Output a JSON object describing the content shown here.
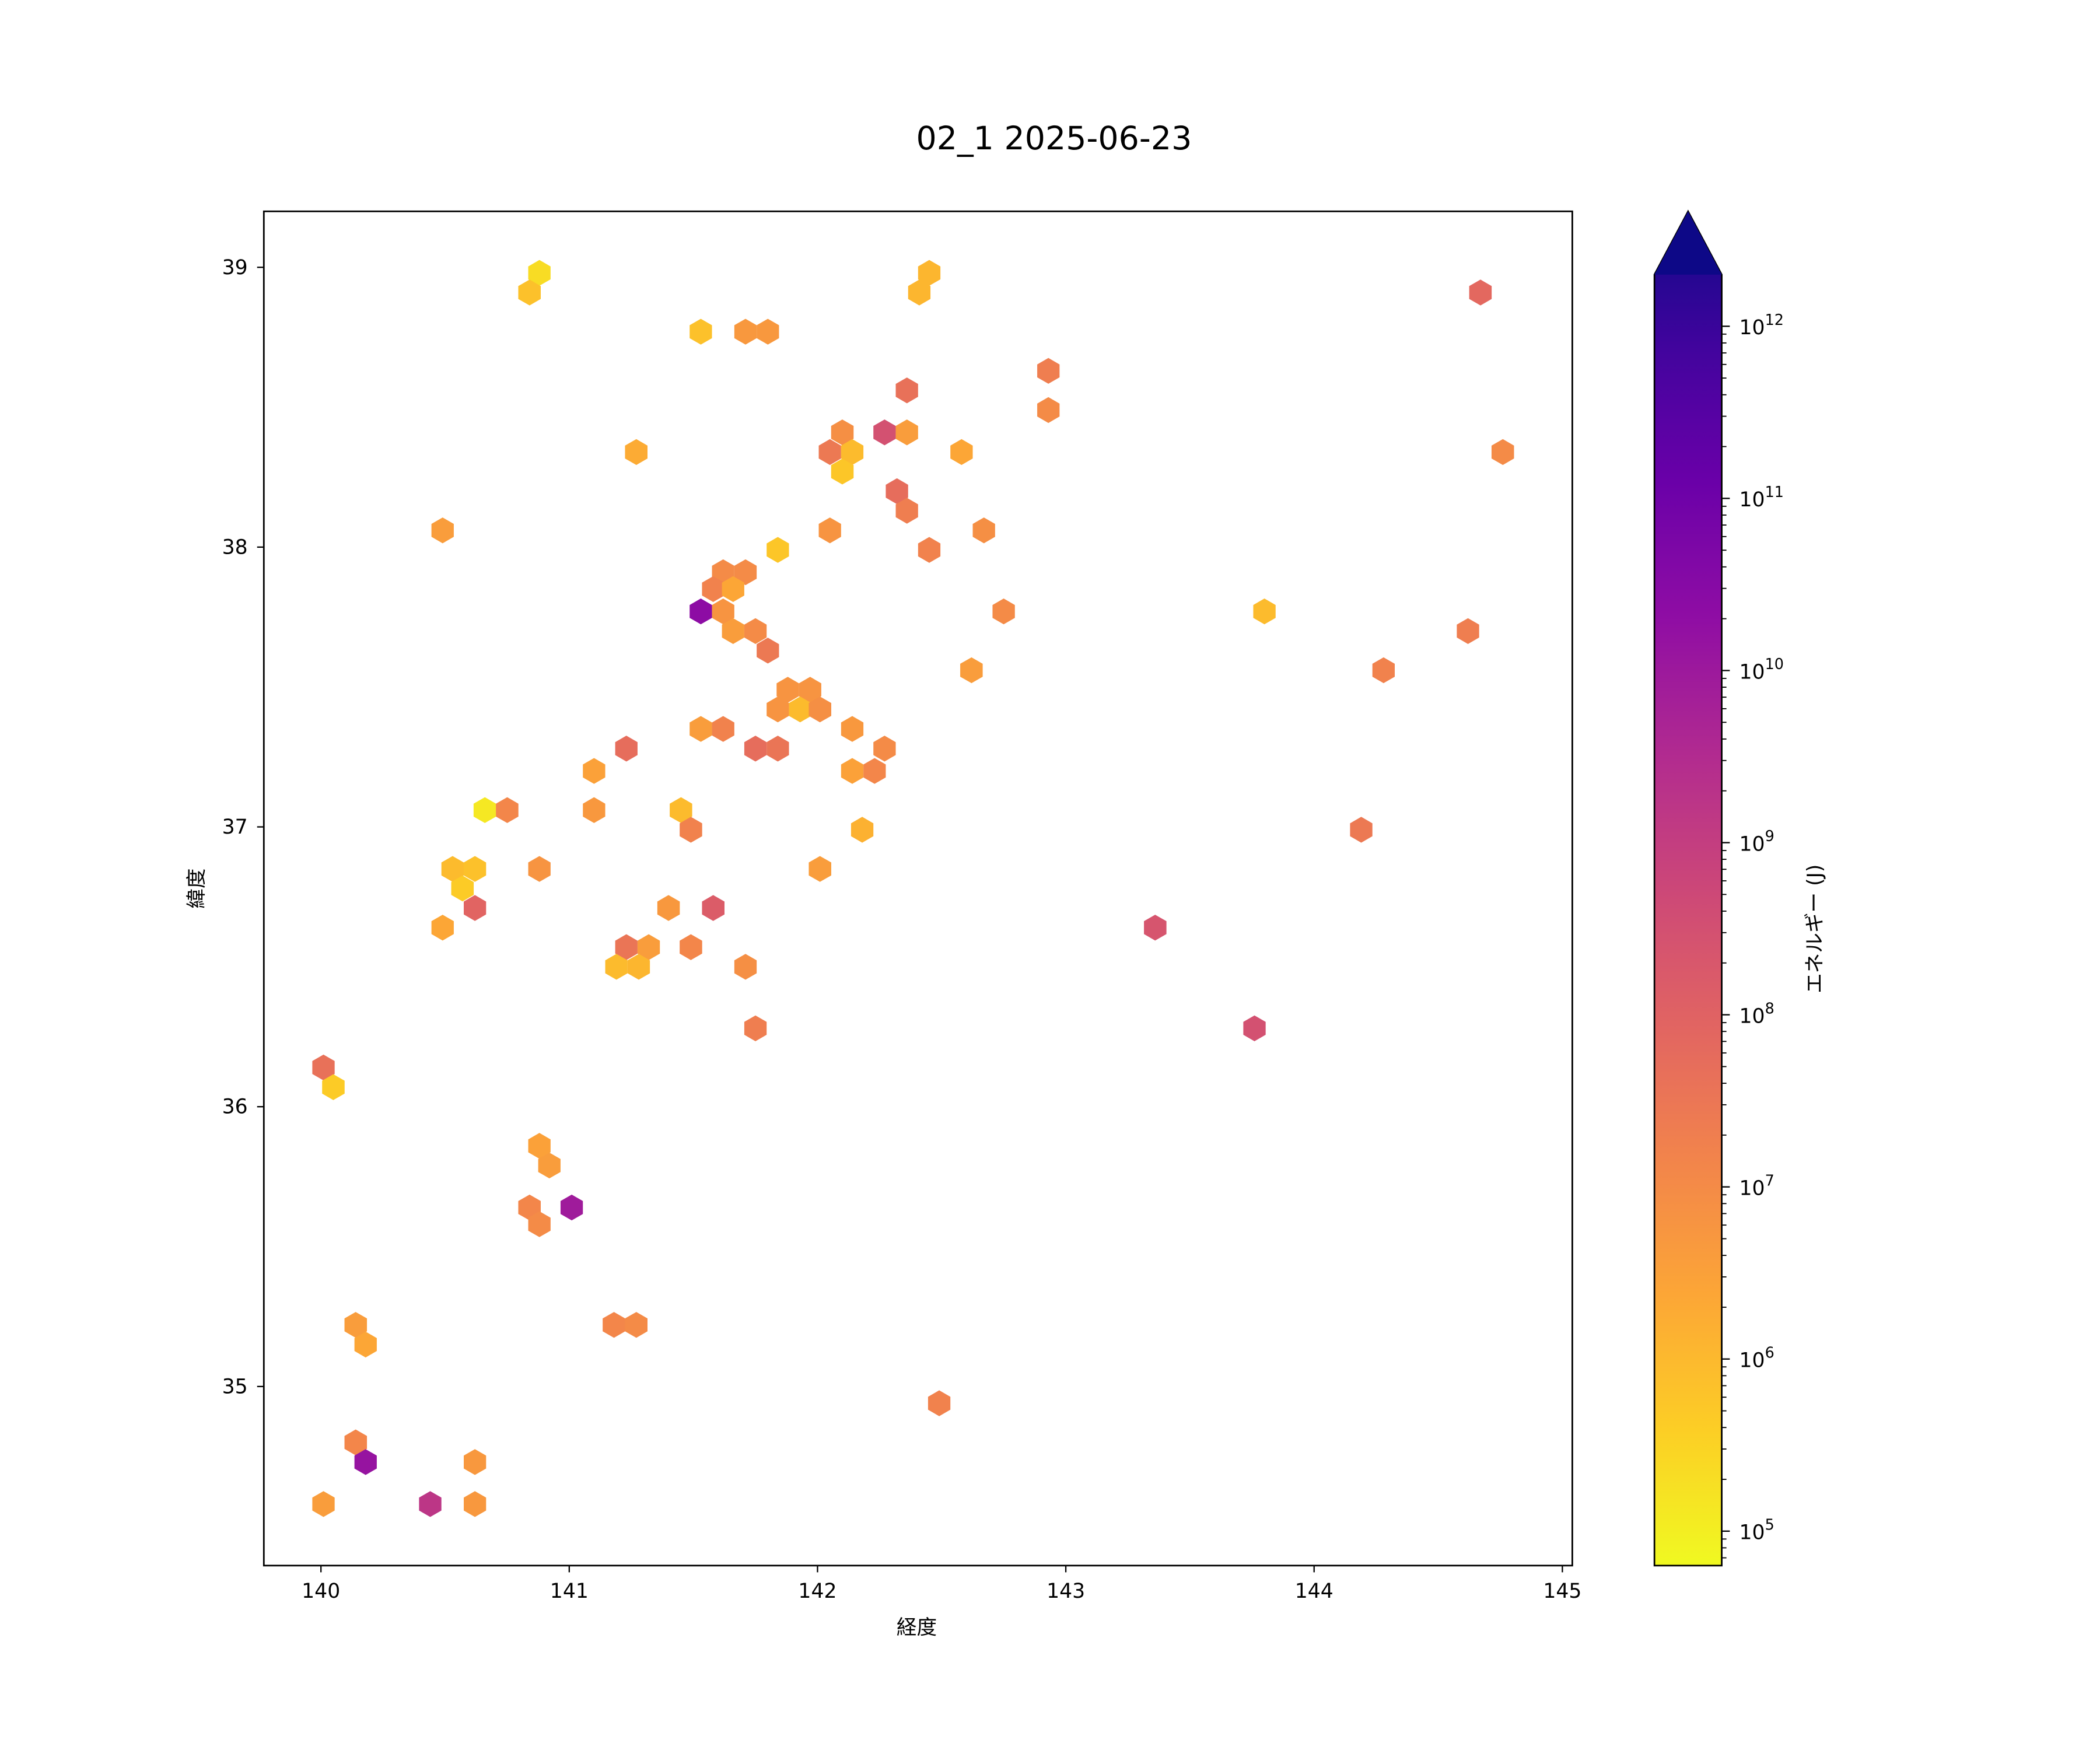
{
  "chart_data": {
    "type": "hexbin",
    "title": "02_1 2025-06-23",
    "xlabel": "経度",
    "ylabel": "緯度",
    "xlim": [
      139.77,
      145.04
    ],
    "ylim": [
      34.36,
      39.2
    ],
    "xticks": [
      140,
      141,
      142,
      143,
      144,
      145
    ],
    "yticks": [
      35,
      36,
      37,
      38,
      39
    ],
    "grid": false,
    "colorbar": {
      "label": "エネルギー (J)",
      "scale": "log",
      "colormap": "plasma",
      "extend": "max",
      "range_log10": [
        4.8,
        12.3
      ],
      "tick_base": "10",
      "tick_exponents": [
        5,
        6,
        7,
        8,
        9,
        10,
        11,
        12
      ]
    },
    "points_columns": [
      "lon",
      "lat",
      "log10_energy_J"
    ],
    "points": [
      [
        140.88,
        38.98,
        5.3
      ],
      [
        140.84,
        38.91,
        5.8
      ],
      [
        141.53,
        38.77,
        5.8
      ],
      [
        141.71,
        38.77,
        6.6
      ],
      [
        141.8,
        38.77,
        6.6
      ],
      [
        142.45,
        38.98,
        6.0
      ],
      [
        142.41,
        38.91,
        6.0
      ],
      [
        144.67,
        38.91,
        7.7
      ],
      [
        142.93,
        38.63,
        7.2
      ],
      [
        142.93,
        38.49,
        6.9
      ],
      [
        142.36,
        38.56,
        7.5
      ],
      [
        144.76,
        38.34,
        6.9
      ],
      [
        141.27,
        38.34,
        6.2
      ],
      [
        142.58,
        38.34,
        6.3
      ],
      [
        142.1,
        38.41,
        6.8
      ],
      [
        142.05,
        38.34,
        7.3
      ],
      [
        142.14,
        38.34,
        5.9
      ],
      [
        142.1,
        38.27,
        5.7
      ],
      [
        142.27,
        38.41,
        8.3
      ],
      [
        142.36,
        38.41,
        6.5
      ],
      [
        142.32,
        38.2,
        7.6
      ],
      [
        142.36,
        38.13,
        7.2
      ],
      [
        140.49,
        38.06,
        6.5
      ],
      [
        142.05,
        38.06,
        6.7
      ],
      [
        142.67,
        38.06,
        6.8
      ],
      [
        142.45,
        37.99,
        7.1
      ],
      [
        141.84,
        37.99,
        5.7
      ],
      [
        141.62,
        37.91,
        6.9
      ],
      [
        141.71,
        37.91,
        6.9
      ],
      [
        141.58,
        37.85,
        7.1
      ],
      [
        141.66,
        37.85,
        6.3
      ],
      [
        141.53,
        37.77,
        10.1
      ],
      [
        141.62,
        37.77,
        6.7
      ],
      [
        141.66,
        37.7,
        6.5
      ],
      [
        141.75,
        37.7,
        6.9
      ],
      [
        141.8,
        37.63,
        7.3
      ],
      [
        142.75,
        37.77,
        6.9
      ],
      [
        143.8,
        37.77,
        5.9
      ],
      [
        144.62,
        37.7,
        7.2
      ],
      [
        142.62,
        37.56,
        6.5
      ],
      [
        144.28,
        37.56,
        7.1
      ],
      [
        141.88,
        37.49,
        6.7
      ],
      [
        141.97,
        37.49,
        6.7
      ],
      [
        141.84,
        37.42,
        6.7
      ],
      [
        141.93,
        37.42,
        5.9
      ],
      [
        142.01,
        37.42,
        6.8
      ],
      [
        141.53,
        37.35,
        6.5
      ],
      [
        141.62,
        37.35,
        7.1
      ],
      [
        142.14,
        37.35,
        6.6
      ],
      [
        141.23,
        37.28,
        7.6
      ],
      [
        141.75,
        37.28,
        7.6
      ],
      [
        141.84,
        37.28,
        7.4
      ],
      [
        142.27,
        37.28,
        6.9
      ],
      [
        141.1,
        37.2,
        6.4
      ],
      [
        142.14,
        37.2,
        6.4
      ],
      [
        142.23,
        37.2,
        7.0
      ],
      [
        140.66,
        37.06,
        5.1
      ],
      [
        140.75,
        37.06,
        7.0
      ],
      [
        141.1,
        37.06,
        6.6
      ],
      [
        141.45,
        37.06,
        5.9
      ],
      [
        141.49,
        36.99,
        7.1
      ],
      [
        142.18,
        36.99,
        6.1
      ],
      [
        144.19,
        36.99,
        7.3
      ],
      [
        140.53,
        36.85,
        5.9
      ],
      [
        140.62,
        36.85,
        5.8
      ],
      [
        140.88,
        36.85,
        6.7
      ],
      [
        142.01,
        36.85,
        6.5
      ],
      [
        140.57,
        36.78,
        5.6
      ],
      [
        140.62,
        36.71,
        7.8
      ],
      [
        141.4,
        36.71,
        6.6
      ],
      [
        141.58,
        36.71,
        8.0
      ],
      [
        140.49,
        36.64,
        6.3
      ],
      [
        143.36,
        36.64,
        8.2
      ],
      [
        141.23,
        36.57,
        7.4
      ],
      [
        141.32,
        36.57,
        6.5
      ],
      [
        141.49,
        36.57,
        7.0
      ],
      [
        141.19,
        36.5,
        5.9
      ],
      [
        141.28,
        36.5,
        6.0
      ],
      [
        141.71,
        36.5,
        6.8
      ],
      [
        141.75,
        36.28,
        7.2
      ],
      [
        143.76,
        36.28,
        8.3
      ],
      [
        140.01,
        36.14,
        7.5
      ],
      [
        140.05,
        36.07,
        5.6
      ],
      [
        140.88,
        35.86,
        6.4
      ],
      [
        140.92,
        35.79,
        6.5
      ],
      [
        140.84,
        35.64,
        7.0
      ],
      [
        141.01,
        35.64,
        9.7
      ],
      [
        140.88,
        35.58,
        6.9
      ],
      [
        140.14,
        35.22,
        6.5
      ],
      [
        140.18,
        35.15,
        6.3
      ],
      [
        141.18,
        35.22,
        7.0
      ],
      [
        141.27,
        35.22,
        6.9
      ],
      [
        142.49,
        34.94,
        7.1
      ],
      [
        140.14,
        34.8,
        7.0
      ],
      [
        140.18,
        34.73,
        9.9
      ],
      [
        140.62,
        34.73,
        6.6
      ],
      [
        140.01,
        34.58,
        6.5
      ],
      [
        140.44,
        34.58,
        9.0
      ],
      [
        140.62,
        34.58,
        6.6
      ]
    ]
  }
}
